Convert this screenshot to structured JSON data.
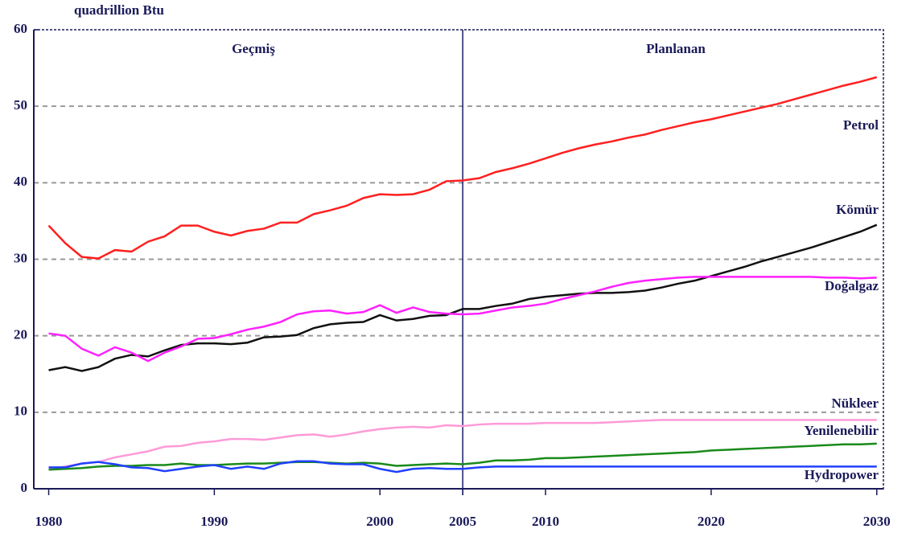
{
  "chart_data": {
    "type": "line",
    "ylabel": "quadrillion Btu",
    "annotations": [
      "Geçmiş",
      "Planlanan"
    ],
    "divider_x": 2005,
    "xlim": [
      1979.1,
      2030.4
    ],
    "ylim": [
      0,
      60
    ],
    "xticks": [
      1980,
      1990,
      2000,
      2005,
      2010,
      2020,
      2030
    ],
    "yticks": [
      0,
      10,
      20,
      30,
      40,
      50,
      60
    ],
    "grid": true,
    "x": [
      1980,
      1981,
      1982,
      1983,
      1984,
      1985,
      1986,
      1987,
      1988,
      1989,
      1990,
      1991,
      1992,
      1993,
      1994,
      1995,
      1996,
      1997,
      1998,
      1999,
      2000,
      2001,
      2002,
      2003,
      2004,
      2005,
      2006,
      2007,
      2008,
      2009,
      2010,
      2011,
      2012,
      2013,
      2014,
      2015,
      2016,
      2017,
      2018,
      2019,
      2020,
      2021,
      2022,
      2023,
      2024,
      2025,
      2026,
      2027,
      2028,
      2029,
      2030
    ],
    "series": [
      {
        "name": "Petrol",
        "color": "#ff2020",
        "values": [
          34.4,
          32.1,
          30.3,
          30.1,
          31.2,
          31.0,
          32.3,
          33.0,
          34.4,
          34.4,
          33.6,
          33.1,
          33.7,
          34.0,
          34.8,
          34.8,
          35.9,
          36.4,
          37.0,
          38.0,
          38.5,
          38.4,
          38.5,
          39.1,
          40.2,
          40.3,
          40.6,
          41.4,
          41.9,
          42.5,
          43.2,
          43.9,
          44.5,
          45.0,
          45.4,
          45.9,
          46.3,
          46.9,
          47.4,
          47.9,
          48.3,
          48.8,
          49.3,
          49.8,
          50.3,
          50.9,
          51.5,
          52.1,
          52.7,
          53.2,
          53.8
        ]
      },
      {
        "name": "Kömür",
        "color": "#111111",
        "values": [
          15.5,
          15.9,
          15.4,
          15.9,
          17.0,
          17.5,
          17.3,
          18.1,
          18.8,
          19.0,
          19.0,
          18.9,
          19.1,
          19.8,
          19.9,
          20.1,
          21.0,
          21.5,
          21.7,
          21.8,
          22.7,
          22.0,
          22.2,
          22.6,
          22.7,
          23.5,
          23.5,
          23.9,
          24.2,
          24.8,
          25.1,
          25.3,
          25.5,
          25.6,
          25.6,
          25.7,
          25.9,
          26.3,
          26.8,
          27.2,
          27.8,
          28.4,
          29.0,
          29.7,
          30.3,
          30.9,
          31.5,
          32.2,
          32.9,
          33.6,
          34.5
        ]
      },
      {
        "name": "Doğalgaz",
        "color": "#ff20ff",
        "values": [
          20.3,
          20.0,
          18.3,
          17.4,
          18.5,
          17.8,
          16.7,
          17.8,
          18.6,
          19.6,
          19.7,
          20.2,
          20.8,
          21.2,
          21.8,
          22.8,
          23.2,
          23.3,
          22.9,
          23.1,
          24.0,
          23.0,
          23.7,
          23.1,
          22.9,
          22.8,
          22.9,
          23.3,
          23.7,
          23.9,
          24.2,
          24.8,
          25.3,
          25.8,
          26.4,
          26.9,
          27.2,
          27.4,
          27.6,
          27.7,
          27.7,
          27.7,
          27.7,
          27.7,
          27.7,
          27.7,
          27.7,
          27.6,
          27.6,
          27.5,
          27.6
        ]
      },
      {
        "name": "Nükleer",
        "color": "#ff9ad8",
        "values": [
          2.6,
          2.9,
          3.3,
          3.5,
          4.1,
          4.5,
          4.9,
          5.5,
          5.6,
          6.0,
          6.2,
          6.5,
          6.5,
          6.4,
          6.7,
          7.0,
          7.1,
          6.8,
          7.1,
          7.5,
          7.8,
          8.0,
          8.1,
          8.0,
          8.3,
          8.2,
          8.4,
          8.5,
          8.5,
          8.5,
          8.6,
          8.6,
          8.6,
          8.6,
          8.7,
          8.8,
          8.9,
          9.0,
          9.0,
          9.0,
          9.0,
          9.0,
          9.0,
          9.0,
          9.0,
          9.0,
          9.0,
          9.0,
          9.0,
          9.0,
          9.0
        ]
      },
      {
        "name": "Yenilenebilir",
        "color": "#1a8a1a",
        "values": [
          2.5,
          2.6,
          2.7,
          2.9,
          3.0,
          3.0,
          3.1,
          3.1,
          3.3,
          3.1,
          3.1,
          3.2,
          3.3,
          3.3,
          3.4,
          3.5,
          3.5,
          3.4,
          3.3,
          3.4,
          3.3,
          3.0,
          3.1,
          3.2,
          3.3,
          3.2,
          3.4,
          3.7,
          3.7,
          3.8,
          4.0,
          4.0,
          4.1,
          4.2,
          4.3,
          4.4,
          4.5,
          4.6,
          4.7,
          4.8,
          5.0,
          5.1,
          5.2,
          5.3,
          5.4,
          5.5,
          5.6,
          5.7,
          5.8,
          5.8,
          5.9
        ]
      },
      {
        "name": "Hydropower",
        "color": "#2040ff",
        "values": [
          2.8,
          2.8,
          3.3,
          3.5,
          3.2,
          2.8,
          2.7,
          2.3,
          2.6,
          2.9,
          3.1,
          2.6,
          2.9,
          2.6,
          3.3,
          3.6,
          3.6,
          3.3,
          3.2,
          3.2,
          2.6,
          2.2,
          2.6,
          2.7,
          2.6,
          2.6,
          2.8,
          2.9,
          2.9,
          2.9,
          2.9,
          2.9,
          2.9,
          2.9,
          2.9,
          2.9,
          2.9,
          2.9,
          2.9,
          2.9,
          2.9,
          2.9,
          2.9,
          2.9,
          2.9,
          2.9,
          2.9,
          2.9,
          2.9,
          2.9,
          2.9
        ]
      }
    ]
  }
}
